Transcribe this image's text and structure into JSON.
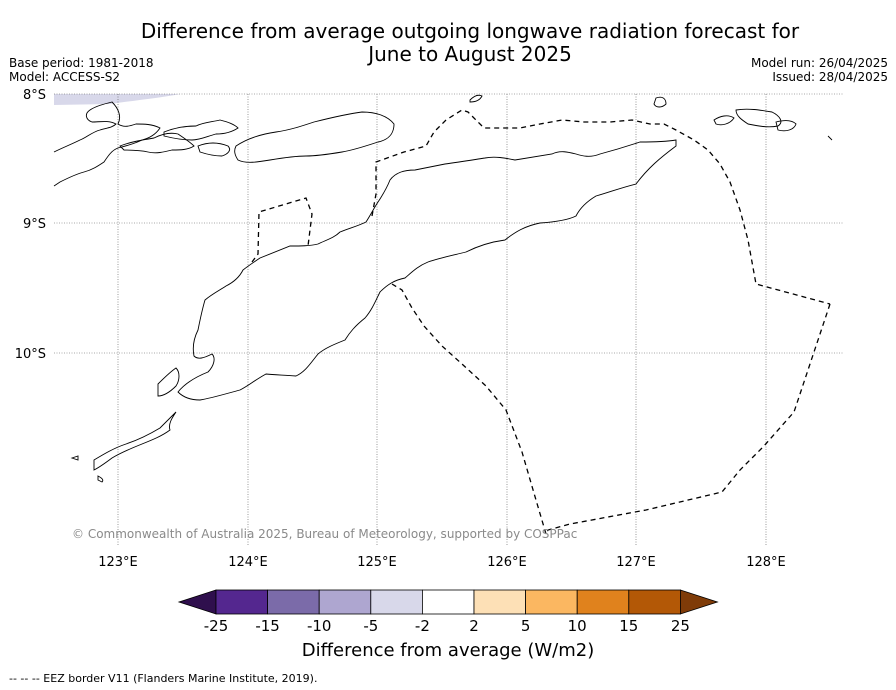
{
  "title": {
    "line1": "Difference from average outgoing longwave radiation forecast for",
    "line2": "June to August 2025"
  },
  "meta": {
    "base_period": "Base period: 1981-2018",
    "model": "Model: ACCESS-S2",
    "model_run": "Model run: 26/04/2025",
    "issued": "Issued: 28/04/2025"
  },
  "axes": {
    "lat_labels": [
      "8°S",
      "9°S",
      "10°S"
    ],
    "lon_labels": [
      "123°E",
      "124°E",
      "125°E",
      "126°E",
      "127°E",
      "128°E"
    ]
  },
  "colorbar": {
    "ticks": [
      "-25",
      "-15",
      "-10",
      "-5",
      "-2",
      "2",
      "5",
      "10",
      "15",
      "25"
    ],
    "colors": [
      "#2f0f4d",
      "#54278f",
      "#7b6ba9",
      "#aea6d0",
      "#d8d8ea",
      "#ffffff",
      "#fde0b6",
      "#fbb761",
      "#e0821d",
      "#b35806",
      "#7f3b08"
    ],
    "label": "Difference from average (W/m2)"
  },
  "copyright": "© Commonwealth of Australia 2025, Bureau of Meteorology, supported by COSPPac",
  "legend_note": "--  --  -- EEZ border V11 (Flanders Marine Institute, 2019)."
}
